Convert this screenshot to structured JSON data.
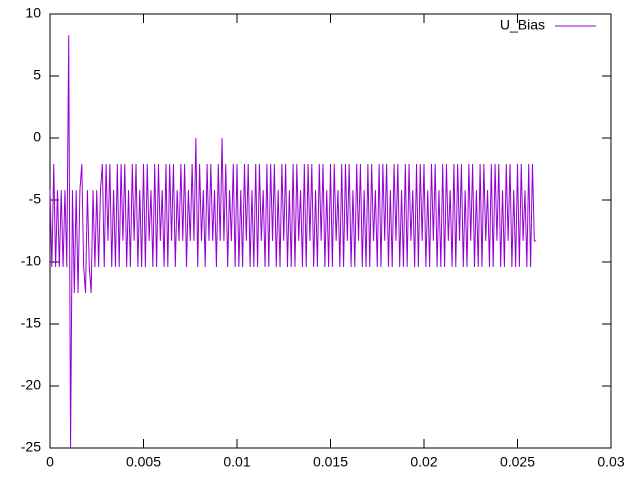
{
  "chart_data": {
    "type": "line",
    "x": [
      0,
      0.0001,
      0.0002,
      0.0003,
      0.0004,
      0.0005,
      0.0006,
      0.0007,
      0.0008,
      0.0009,
      0.001,
      0.0011,
      0.0012,
      0.0013,
      0.0014,
      0.0015,
      0.0016,
      0.0017,
      0.0018,
      0.0019,
      0.002,
      0.0021,
      0.0022,
      0.0023,
      0.0024,
      0.0025,
      0.0026,
      0.0027,
      0.0028,
      0.0029,
      0.003,
      0.0031,
      0.0032,
      0.0033,
      0.0034,
      0.0035,
      0.0036,
      0.0037,
      0.0038,
      0.0039,
      0.004,
      0.0041,
      0.0042,
      0.0043,
      0.0044,
      0.0045,
      0.0046,
      0.0047,
      0.0048,
      0.0049,
      0.005,
      0.0051,
      0.0052,
      0.0053,
      0.0054,
      0.0055,
      0.0056,
      0.0057,
      0.0058,
      0.0059,
      0.006,
      0.0061,
      0.0062,
      0.0063,
      0.0064,
      0.0065,
      0.0066,
      0.0067,
      0.0068,
      0.0069,
      0.007,
      0.0071,
      0.0072,
      0.0073,
      0.0074,
      0.0075,
      0.0076,
      0.0077,
      0.0078,
      0.0079,
      0.008,
      0.0081,
      0.0082,
      0.0083,
      0.0084,
      0.0085,
      0.0086,
      0.0087,
      0.0088,
      0.0089,
      0.009,
      0.0091,
      0.0092,
      0.0093,
      0.0094,
      0.0095,
      0.0096,
      0.0097,
      0.0098,
      0.0099,
      0.01,
      0.0101,
      0.0102,
      0.0103,
      0.0104,
      0.0105,
      0.0106,
      0.0107,
      0.0108,
      0.0109,
      0.011,
      0.0111,
      0.0112,
      0.0113,
      0.0114,
      0.0115,
      0.0116,
      0.0117,
      0.0118,
      0.0119,
      0.012,
      0.0121,
      0.0122,
      0.0123,
      0.0124,
      0.0125,
      0.0126,
      0.0127,
      0.0128,
      0.0129,
      0.013,
      0.0131,
      0.0132,
      0.0133,
      0.0134,
      0.0135,
      0.0136,
      0.0137,
      0.0138,
      0.0139,
      0.014,
      0.0141,
      0.0142,
      0.0143,
      0.0144,
      0.0145,
      0.0146,
      0.0147,
      0.0148,
      0.0149,
      0.015,
      0.0151,
      0.0152,
      0.0153,
      0.0154,
      0.0155,
      0.0156,
      0.0157,
      0.0158,
      0.0159,
      0.016,
      0.0161,
      0.0162,
      0.0163,
      0.0164,
      0.0165,
      0.0166,
      0.0167,
      0.0168,
      0.0169,
      0.017,
      0.0171,
      0.0172,
      0.0173,
      0.0174,
      0.0175,
      0.0176,
      0.0177,
      0.0178,
      0.0179,
      0.018,
      0.0181,
      0.0182,
      0.0183,
      0.0184,
      0.0185,
      0.0186,
      0.0187,
      0.0188,
      0.0189,
      0.019,
      0.0191,
      0.0192,
      0.0193,
      0.0194,
      0.0195,
      0.0196,
      0.0197,
      0.0198,
      0.0199,
      0.02,
      0.0201,
      0.0202,
      0.0203,
      0.0204,
      0.0205,
      0.0206,
      0.0207,
      0.0208,
      0.0209,
      0.021,
      0.0211,
      0.0212,
      0.0213,
      0.0214,
      0.0215,
      0.0216,
      0.0217,
      0.0218,
      0.0219,
      0.022,
      0.0221,
      0.0222,
      0.0223,
      0.0224,
      0.0225,
      0.0226,
      0.0227,
      0.0228,
      0.0229,
      0.023,
      0.0231,
      0.0232,
      0.0233,
      0.0234,
      0.0235,
      0.0236,
      0.0237,
      0.0238,
      0.0239,
      0.024,
      0.0241,
      0.0242,
      0.0243,
      0.0244,
      0.0245,
      0.0246,
      0.0247,
      0.0248,
      0.0249,
      0.025,
      0.0251,
      0.0252,
      0.0253,
      0.0254,
      0.0255,
      0.0256,
      0.0257,
      0.0258,
      0.0259,
      0.026
    ],
    "series": [
      {
        "name": "U_Bias",
        "color": "#9400d3",
        "values": [
          -4.2,
          -10.4,
          -2.1,
          -10.4,
          -4.2,
          -10.4,
          -4.2,
          -10.4,
          -4.2,
          -10.4,
          8.3,
          -25,
          -4.2,
          -12.5,
          -4.2,
          -12.5,
          -4.2,
          -2.1,
          -10.4,
          -12.5,
          -4.2,
          -10.4,
          -12.5,
          -4.2,
          -10.4,
          -4.2,
          -10.4,
          -4.2,
          -2.1,
          -10.4,
          -2.1,
          -8.3,
          -2.1,
          -10.4,
          -4.2,
          -10.4,
          -2.1,
          -10.4,
          -2.1,
          -8.3,
          -2.1,
          -10.4,
          -4.2,
          -10.4,
          -2.1,
          -8.3,
          -2.1,
          -10.4,
          -4.2,
          -10.4,
          -2.1,
          -10.4,
          -2.1,
          -8.3,
          -4.2,
          -10.4,
          -2.1,
          -10.4,
          -2.1,
          -8.3,
          -4.2,
          -10.4,
          -2.1,
          -10.4,
          -2.1,
          -8.3,
          -2.1,
          -10.4,
          -4.2,
          -8.3,
          -2.1,
          -8.3,
          -2.1,
          -10.4,
          -4.2,
          -8.3,
          -2.1,
          -8.3,
          0,
          -10.4,
          -2.1,
          -8.3,
          -4.2,
          -10.4,
          -2.1,
          -8.3,
          -2.1,
          -8.3,
          -4.2,
          -10.4,
          -2.1,
          -8.3,
          0,
          -8.3,
          -2.1,
          -10.4,
          -4.2,
          -8.3,
          -2.1,
          -10.4,
          -2.1,
          -10.4,
          -4.2,
          -10.4,
          -2.1,
          -8.3,
          -2.1,
          -10.4,
          -4.2,
          -10.4,
          -2.1,
          -10.4,
          -2.1,
          -8.3,
          -4.2,
          -10.4,
          -2.1,
          -10.4,
          -2.1,
          -8.3,
          -2.1,
          -10.4,
          -4.2,
          -10.4,
          -2.1,
          -8.3,
          -2.1,
          -10.4,
          -4.2,
          -10.4,
          -2.1,
          -10.4,
          -2.1,
          -8.3,
          -4.2,
          -10.4,
          -2.1,
          -10.4,
          -2.1,
          -8.3,
          -2.1,
          -10.4,
          -4.2,
          -10.4,
          -2.1,
          -8.3,
          -2.1,
          -10.4,
          -4.2,
          -10.4,
          -2.1,
          -10.4,
          -2.1,
          -8.3,
          -4.2,
          -10.4,
          -2.1,
          -10.4,
          -2.1,
          -8.3,
          -2.1,
          -10.4,
          -4.2,
          -10.4,
          -2.1,
          -8.3,
          -2.1,
          -10.4,
          -4.2,
          -10.4,
          -2.1,
          -10.4,
          -2.1,
          -8.3,
          -4.2,
          -10.4,
          -2.1,
          -10.4,
          -2.1,
          -8.3,
          -2.1,
          -10.4,
          -4.2,
          -10.4,
          -2.1,
          -8.3,
          -2.1,
          -10.4,
          -4.2,
          -10.4,
          -2.1,
          -10.4,
          -2.1,
          -8.3,
          -4.2,
          -10.4,
          -2.1,
          -10.4,
          -2.1,
          -8.3,
          -2.1,
          -10.4,
          -4.2,
          -10.4,
          -2.1,
          -8.3,
          -2.1,
          -10.4,
          -4.2,
          -10.4,
          -2.1,
          -10.4,
          -2.1,
          -8.3,
          -4.2,
          -10.4,
          -2.1,
          -10.4,
          -2.1,
          -8.3,
          -2.1,
          -10.4,
          -4.2,
          -10.4,
          -2.1,
          -8.3,
          -2.1,
          -10.4,
          -4.2,
          -10.4,
          -2.1,
          -10.4,
          -2.1,
          -8.3,
          -4.2,
          -10.4,
          -2.1,
          -10.4,
          -2.1,
          -8.3,
          -2.1,
          -10.4,
          -4.2,
          -10.4,
          -2.1,
          -8.3,
          -2.1,
          -10.4,
          -4.2,
          -10.4,
          -2.1,
          -10.4,
          -2.1,
          -8.3,
          -4.2,
          -10.4,
          -2.1,
          -10.4,
          -2.1,
          -8.3,
          -8.3
        ]
      }
    ],
    "xlim": [
      0,
      0.03
    ],
    "xticks": [
      0,
      0.005,
      0.01,
      0.015,
      0.02,
      0.025,
      0.03
    ],
    "ylim": [
      -25,
      10
    ],
    "yticks": [
      -25,
      -20,
      -15,
      -10,
      -5,
      0,
      5,
      10
    ],
    "legend": "top-right"
  }
}
